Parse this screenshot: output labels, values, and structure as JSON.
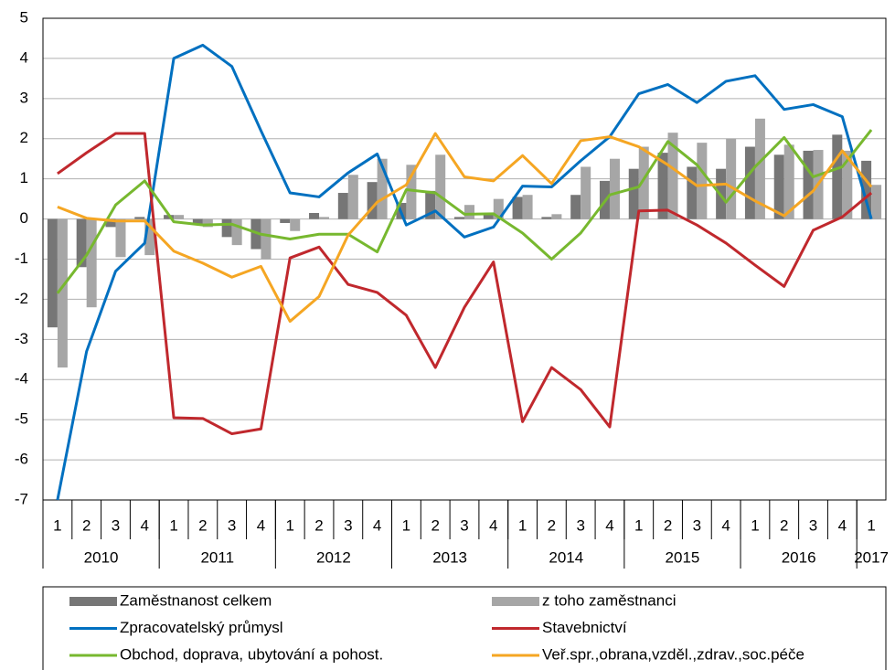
{
  "chart_data": {
    "type": "bar",
    "categories": [
      "1",
      "2",
      "3",
      "4",
      "1",
      "2",
      "3",
      "4",
      "1",
      "2",
      "3",
      "4",
      "1",
      "2",
      "3",
      "4",
      "1",
      "2",
      "3",
      "4",
      "1",
      "2",
      "3",
      "4",
      "1",
      "2",
      "3",
      "4",
      "1"
    ],
    "year_groups": [
      {
        "label": "2010",
        "span": 4
      },
      {
        "label": "2011",
        "span": 4
      },
      {
        "label": "2012",
        "span": 4
      },
      {
        "label": "2013",
        "span": 4
      },
      {
        "label": "2014",
        "span": 4
      },
      {
        "label": "2015",
        "span": 4
      },
      {
        "label": "2016",
        "span": 4
      },
      {
        "label": "2017",
        "span": 1
      }
    ],
    "ylim": [
      -7,
      5
    ],
    "yticks": [
      -7,
      -6,
      -5,
      -4,
      -3,
      -2,
      -1,
      0,
      1,
      2,
      3,
      4,
      5
    ],
    "grid": true,
    "legend": "bottom",
    "series": [
      {
        "name": "Zaměstnanost celkem",
        "type": "bar",
        "color": "#767676",
        "values": [
          -2.7,
          -1.2,
          -0.2,
          0.05,
          0.1,
          -0.15,
          -0.45,
          -0.75,
          -0.1,
          0.15,
          0.65,
          0.92,
          0.4,
          0.7,
          0.05,
          0.1,
          0.55,
          0.05,
          0.6,
          0.95,
          1.25,
          1.65,
          1.3,
          1.25,
          1.8,
          1.6,
          1.7,
          2.1,
          1.45
        ]
      },
      {
        "name": "z toho zaměstnanci",
        "type": "bar",
        "color": "#a6a6a6",
        "values": [
          -3.7,
          -2.2,
          -0.95,
          -0.9,
          0.1,
          -0.2,
          -0.65,
          -1.0,
          -0.3,
          0.05,
          1.1,
          1.5,
          1.35,
          1.6,
          0.35,
          0.5,
          0.6,
          0.12,
          1.3,
          1.5,
          1.8,
          2.15,
          1.9,
          2.0,
          2.5,
          1.85,
          1.72,
          1.7,
          0.85
        ]
      },
      {
        "name": "Zpracovatelský průmysl",
        "type": "line",
        "color": "#0070c0",
        "values": [
          -7.0,
          -3.3,
          -1.3,
          -0.6,
          4.0,
          4.33,
          3.8,
          2.2,
          0.65,
          0.55,
          1.15,
          1.62,
          -0.15,
          0.2,
          -0.45,
          -0.2,
          0.82,
          0.8,
          1.45,
          2.05,
          3.12,
          3.35,
          2.9,
          3.43,
          3.57,
          2.73,
          2.85,
          2.55,
          0.0
        ]
      },
      {
        "name": "Stavebnictví",
        "type": "line",
        "color": "#c0282d",
        "values": [
          1.13,
          1.65,
          2.13,
          2.13,
          -4.95,
          -4.97,
          -5.35,
          -5.23,
          -0.97,
          -0.7,
          -1.63,
          -1.83,
          -2.4,
          -3.7,
          -2.2,
          -1.07,
          -5.05,
          -3.7,
          -4.25,
          -5.18,
          0.2,
          0.22,
          -0.15,
          -0.6,
          -1.15,
          -1.68,
          -0.28,
          0.05,
          0.65
        ]
      },
      {
        "name": "Obchod, doprava, ubytování a pohost.",
        "type": "line",
        "color": "#77b82f",
        "values": [
          -1.85,
          -0.9,
          0.35,
          0.95,
          -0.07,
          -0.15,
          -0.13,
          -0.38,
          -0.5,
          -0.38,
          -0.38,
          -0.82,
          0.73,
          0.65,
          0.12,
          0.13,
          -0.35,
          -1.0,
          -0.35,
          0.6,
          0.8,
          1.93,
          1.35,
          0.42,
          1.3,
          2.03,
          1.05,
          1.3,
          2.22
        ]
      },
      {
        "name": "Veř.spr.,obrana,vzděl.,zdrav.,soc.péče",
        "type": "line",
        "color": "#f5a623",
        "values": [
          0.3,
          0.02,
          -0.05,
          -0.05,
          -0.8,
          -1.1,
          -1.45,
          -1.18,
          -2.55,
          -1.93,
          -0.4,
          0.42,
          0.85,
          2.13,
          1.05,
          0.95,
          1.58,
          0.88,
          1.95,
          2.05,
          1.8,
          1.35,
          0.83,
          0.87,
          0.45,
          0.08,
          0.7,
          1.7,
          0.8
        ]
      }
    ]
  }
}
